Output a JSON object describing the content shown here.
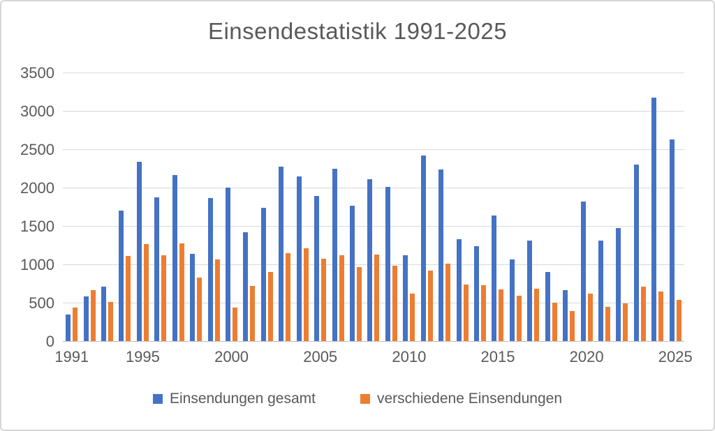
{
  "chart_data": {
    "type": "bar",
    "title": "Einsendestatistik 1991-2025",
    "categories": [
      1991,
      1992,
      1993,
      1994,
      1995,
      1996,
      1997,
      1998,
      1999,
      2000,
      2001,
      2002,
      2003,
      2004,
      2005,
      2006,
      2007,
      2008,
      2009,
      2010,
      2011,
      2012,
      2013,
      2014,
      2015,
      2016,
      2017,
      2018,
      2019,
      2020,
      2021,
      2022,
      2023,
      2024,
      2025
    ],
    "series": [
      {
        "name": "Einsendungen gesamt",
        "color": "#4472C4",
        "values": [
          350,
          580,
          710,
          1700,
          2340,
          1870,
          2160,
          1140,
          1860,
          2000,
          1420,
          1740,
          2270,
          2150,
          1890,
          2250,
          1760,
          2110,
          2010,
          1120,
          2420,
          2240,
          1330,
          1240,
          1640,
          1060,
          1310,
          900,
          660,
          1820,
          1310,
          1470,
          2300,
          3170,
          2630
        ]
      },
      {
        "name": "verschiedene Einsendungen",
        "color": "#ED7D31",
        "values": [
          440,
          660,
          510,
          1110,
          1260,
          1120,
          1270,
          830,
          1060,
          440,
          720,
          900,
          1150,
          1210,
          1070,
          1120,
          960,
          1130,
          980,
          620,
          920,
          1010,
          740,
          730,
          670,
          590,
          680,
          500,
          390,
          620,
          450,
          490,
          710,
          650,
          540
        ]
      }
    ],
    "ylim": [
      0,
      3500
    ],
    "yticks": [
      0,
      500,
      1000,
      1500,
      2000,
      2500,
      3000,
      3500
    ],
    "xticks_shown": [
      1991,
      1995,
      2000,
      2005,
      2010,
      2015,
      2020,
      2025
    ],
    "grid": true,
    "legend_position": "bottom"
  },
  "colors": {
    "background": "#FFFFFF",
    "border": "#D6D6D6",
    "gridline": "#D9D9D9",
    "axis_line": "#BFBFBF",
    "text": "#595959"
  }
}
